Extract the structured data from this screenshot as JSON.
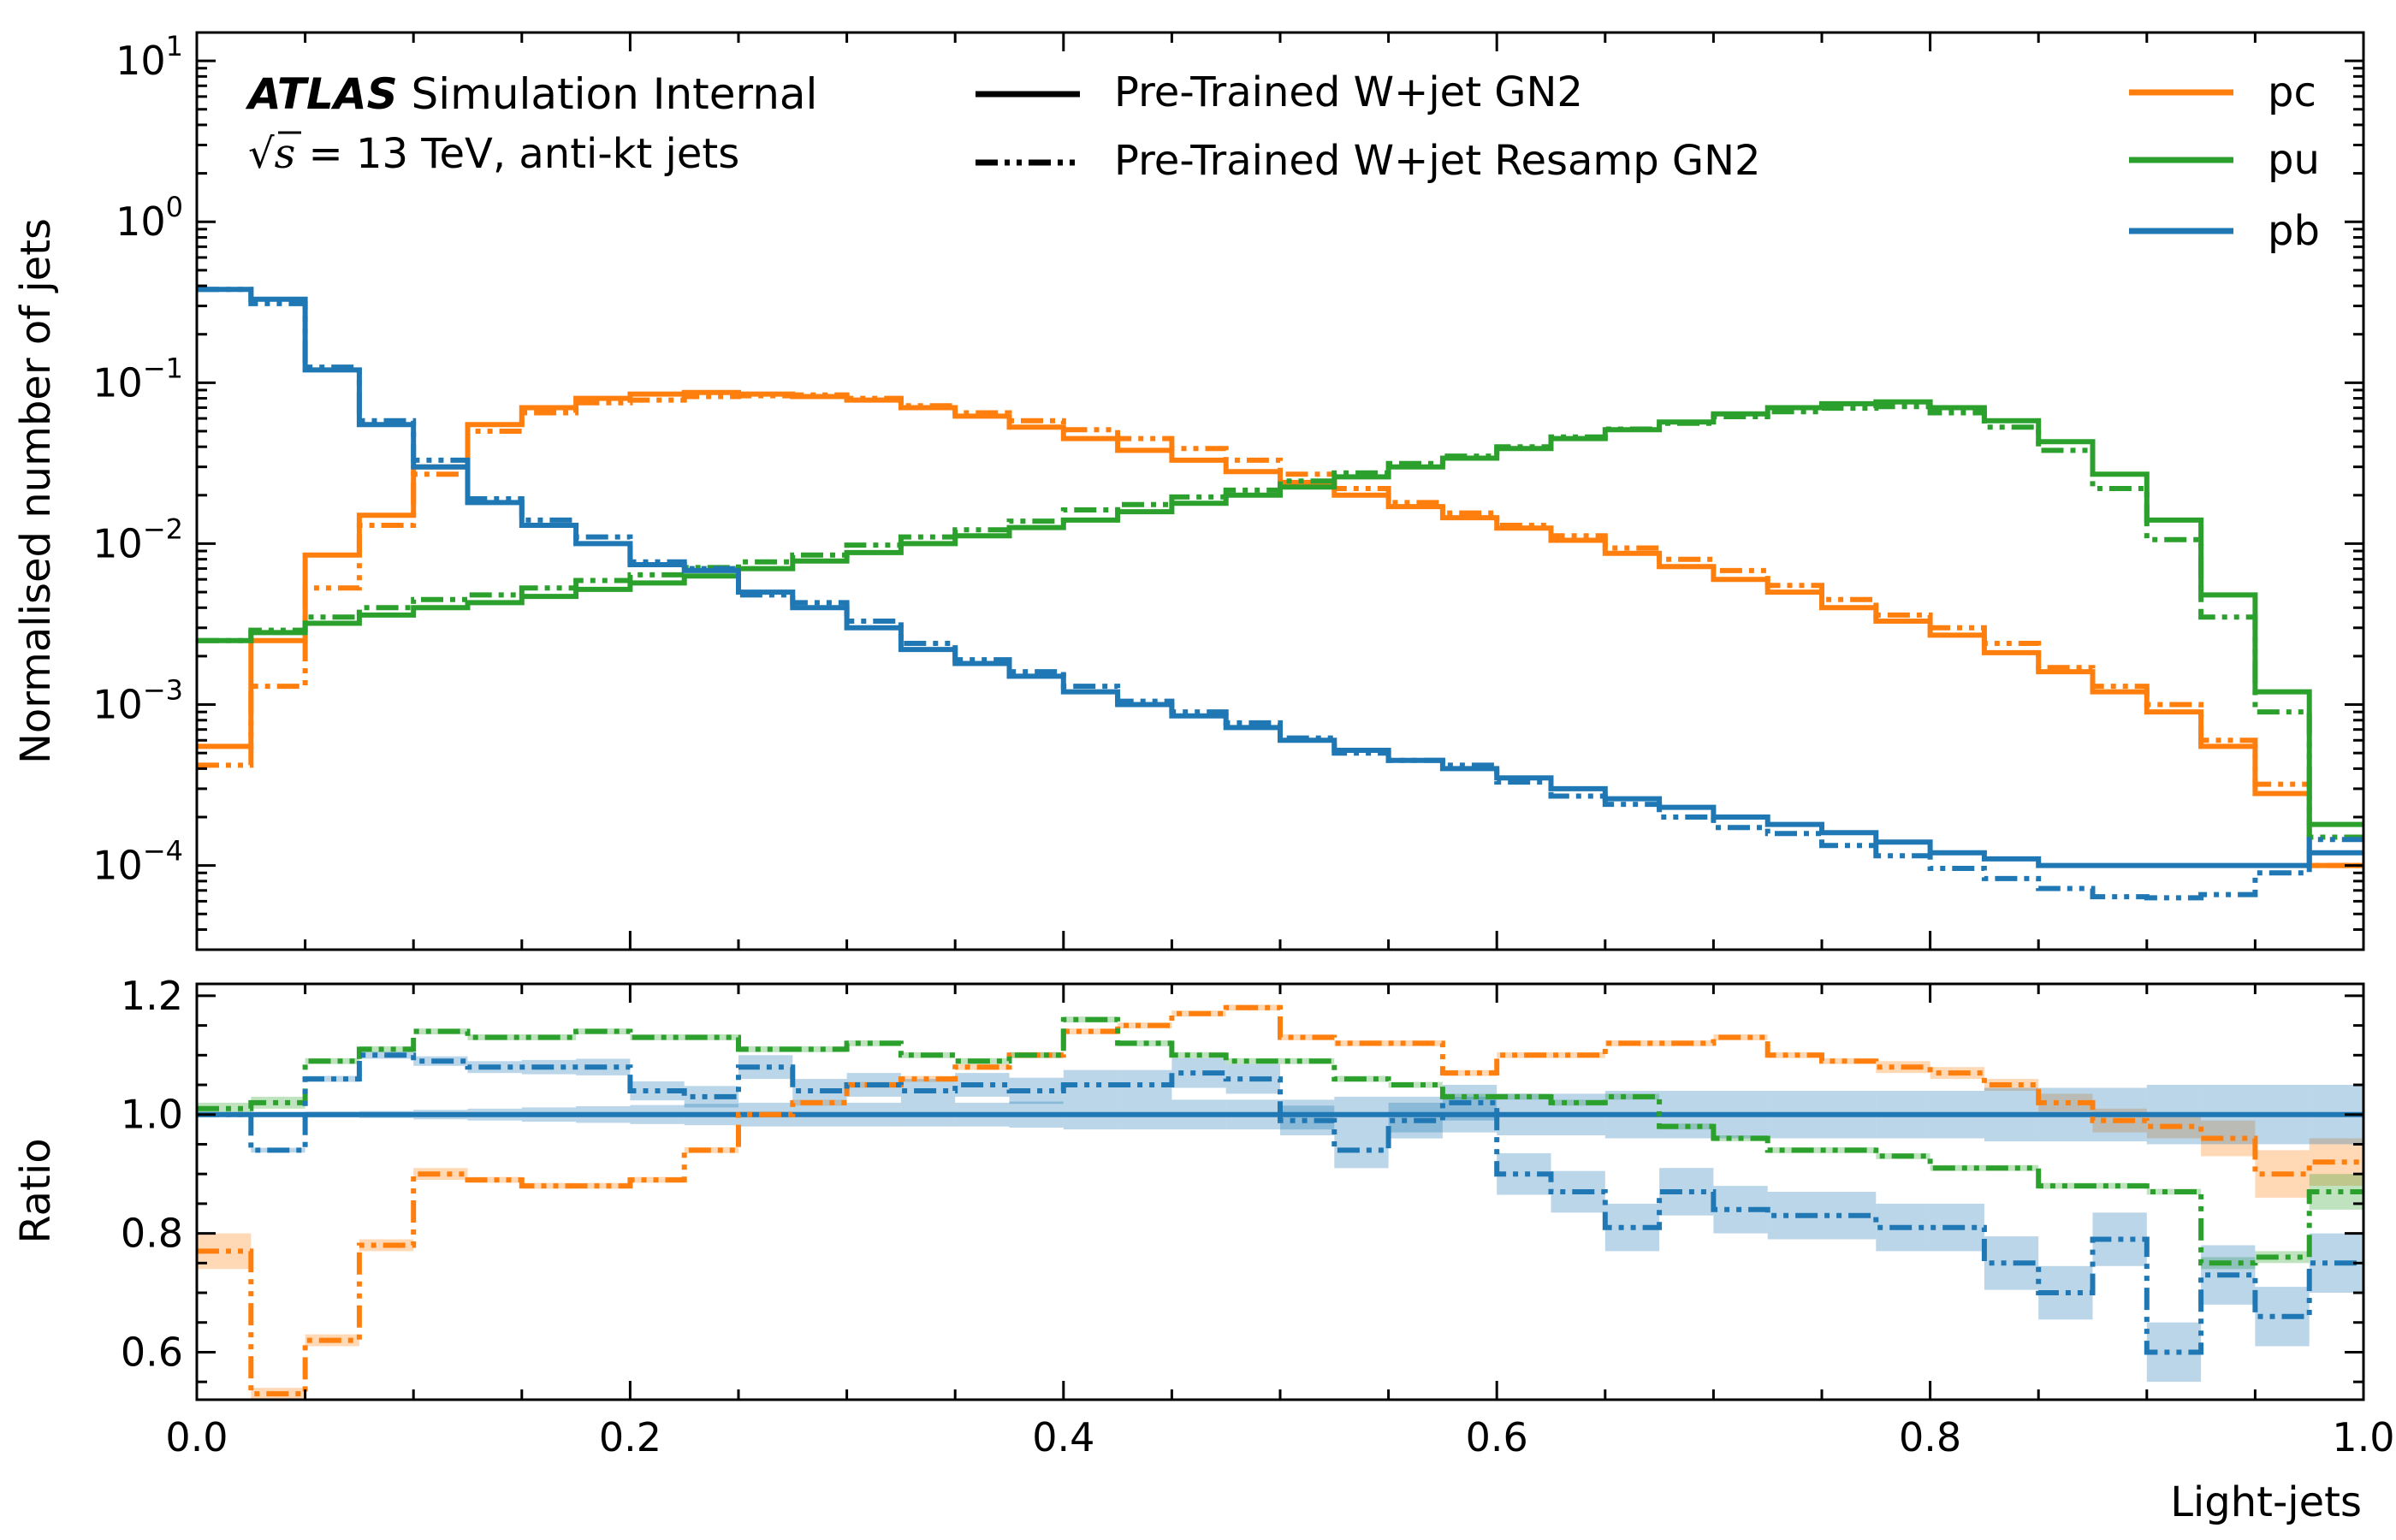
{
  "chart_data": {
    "type": "line",
    "bin_edges": [
      0.0,
      0.025,
      0.05,
      0.075,
      0.1,
      0.125,
      0.15,
      0.175,
      0.2,
      0.225,
      0.25,
      0.275,
      0.3,
      0.325,
      0.35,
      0.375,
      0.4,
      0.425,
      0.45,
      0.475,
      0.5,
      0.525,
      0.55,
      0.575,
      0.6,
      0.625,
      0.65,
      0.675,
      0.7,
      0.725,
      0.75,
      0.775,
      0.8,
      0.825,
      0.85,
      0.875,
      0.9,
      0.925,
      0.95,
      0.975,
      1.0
    ],
    "atlas_label": {
      "bold": "ATLAS",
      "rest": " Simulation Internal",
      "line2_sqrt": "√",
      "line2_s": "s",
      "line2_rest": " = 13 TeV, anti-kt jets"
    },
    "style_legend": [
      {
        "label": "Pre-Trained W+jet GN2",
        "style": "solid"
      },
      {
        "label": "Pre-Trained W+jet Resamp GN2",
        "style": "dashdot"
      }
    ],
    "class_legend": [
      {
        "label": "pc",
        "color": "#ff7f0e"
      },
      {
        "label": "pu",
        "color": "#2ca02c"
      },
      {
        "label": "pb",
        "color": "#1f77b4"
      }
    ],
    "top_panel": {
      "ylabel": "Normalised number of jets",
      "yscale": "log",
      "ylim": [
        3e-05,
        15
      ],
      "yticks": [
        {
          "base": "10",
          "exp": "−4",
          "value": 0.0001
        },
        {
          "base": "10",
          "exp": "−3",
          "value": 0.001
        },
        {
          "base": "10",
          "exp": "−2",
          "value": 0.01
        },
        {
          "base": "10",
          "exp": "−1",
          "value": 0.1
        },
        {
          "base": "10",
          "exp": "0",
          "value": 1
        },
        {
          "base": "10",
          "exp": "1",
          "value": 10
        }
      ],
      "series": [
        {
          "name": "pc",
          "style": "solid",
          "color": "#ff7f0e",
          "values": [
            0.00055,
            0.0025,
            0.0085,
            0.015,
            0.03,
            0.055,
            0.07,
            0.08,
            0.085,
            0.087,
            0.085,
            0.082,
            0.078,
            0.07,
            0.062,
            0.053,
            0.045,
            0.038,
            0.033,
            0.028,
            0.024,
            0.02,
            0.017,
            0.0145,
            0.0125,
            0.0105,
            0.0087,
            0.0072,
            0.006,
            0.005,
            0.004,
            0.0033,
            0.0027,
            0.0021,
            0.0016,
            0.0012,
            0.0009,
            0.00055,
            0.00028,
            0.0001
          ]
        },
        {
          "name": "pc",
          "style": "dashdot",
          "color": "#ff7f0e",
          "values": [
            0.00042,
            0.0013,
            0.0053,
            0.013,
            0.027,
            0.05,
            0.065,
            0.075,
            0.078,
            0.082,
            0.083,
            0.084,
            0.08,
            0.072,
            0.065,
            0.058,
            0.051,
            0.045,
            0.039,
            0.033,
            0.027,
            0.022,
            0.018,
            0.0155,
            0.013,
            0.0112,
            0.0094,
            0.008,
            0.0068,
            0.0055,
            0.0045,
            0.0036,
            0.003,
            0.0024,
            0.0017,
            0.0013,
            0.001,
            0.0006,
            0.00032,
            0.0001
          ]
        },
        {
          "name": "pu",
          "style": "solid",
          "color": "#2ca02c",
          "values": [
            0.0025,
            0.0028,
            0.0032,
            0.0036,
            0.004,
            0.0043,
            0.0047,
            0.0052,
            0.0057,
            0.0063,
            0.007,
            0.0078,
            0.0088,
            0.01,
            0.0112,
            0.0126,
            0.014,
            0.0158,
            0.0178,
            0.02,
            0.0225,
            0.026,
            0.03,
            0.034,
            0.039,
            0.045,
            0.051,
            0.057,
            0.064,
            0.07,
            0.074,
            0.076,
            0.07,
            0.058,
            0.043,
            0.027,
            0.014,
            0.0048,
            0.0012,
            0.00018
          ]
        },
        {
          "name": "pu",
          "style": "dashdot",
          "color": "#2ca02c",
          "values": [
            0.0025,
            0.0029,
            0.0035,
            0.004,
            0.0045,
            0.0048,
            0.0053,
            0.0059,
            0.0064,
            0.0071,
            0.0077,
            0.0085,
            0.0098,
            0.011,
            0.0122,
            0.0138,
            0.0162,
            0.0175,
            0.0195,
            0.0215,
            0.0245,
            0.0275,
            0.0315,
            0.035,
            0.04,
            0.046,
            0.0515,
            0.056,
            0.0615,
            0.066,
            0.0695,
            0.071,
            0.065,
            0.053,
            0.038,
            0.022,
            0.0106,
            0.0035,
            0.0009,
            0.00015
          ]
        },
        {
          "name": "pb",
          "style": "solid",
          "color": "#1f77b4",
          "values": [
            0.38,
            0.33,
            0.12,
            0.055,
            0.03,
            0.018,
            0.013,
            0.01,
            0.0074,
            0.0068,
            0.005,
            0.004,
            0.003,
            0.0022,
            0.0018,
            0.0015,
            0.0012,
            0.001,
            0.00085,
            0.00072,
            0.0006,
            0.00052,
            0.00045,
            0.0004,
            0.00035,
            0.0003,
            0.00026,
            0.00023,
            0.0002,
            0.00018,
            0.00016,
            0.00014,
            0.00012,
            0.00011,
            0.0001,
            0.0001,
            0.0001,
            0.0001,
            0.0001,
            0.00012
          ]
        },
        {
          "name": "pb",
          "style": "dashdot",
          "color": "#1f77b4",
          "values": [
            0.38,
            0.31,
            0.125,
            0.058,
            0.033,
            0.019,
            0.014,
            0.011,
            0.0077,
            0.007,
            0.0048,
            0.0043,
            0.0033,
            0.0024,
            0.0019,
            0.0016,
            0.0013,
            0.00105,
            0.0009,
            0.00077,
            0.00062,
            0.0005,
            0.00045,
            0.00042,
            0.00033,
            0.00027,
            0.00024,
            0.0002,
            0.000172,
            0.000158,
            0.000133,
            0.000115,
            9.6e-05,
            8.3e-05,
            7.2e-05,
            6.4e-05,
            6.3e-05,
            6.6e-05,
            9e-05,
            0.000145
          ]
        }
      ]
    },
    "ratio_panel": {
      "ylabel": "Ratio",
      "ylim": [
        0.52,
        1.22
      ],
      "yticks": [
        "0.6",
        "0.8",
        "1.0",
        "1.2"
      ],
      "reference": 1.0,
      "series": [
        {
          "name": "pc",
          "style": "dashdot",
          "color": "#ff7f0e",
          "values": [
            0.77,
            0.53,
            0.62,
            0.78,
            0.9,
            0.89,
            0.88,
            0.88,
            0.89,
            0.94,
            1.0,
            1.02,
            1.05,
            1.06,
            1.08,
            1.1,
            1.14,
            1.15,
            1.17,
            1.18,
            1.13,
            1.12,
            1.12,
            1.07,
            1.1,
            1.1,
            1.12,
            1.12,
            1.13,
            1.1,
            1.09,
            1.08,
            1.07,
            1.05,
            1.02,
            0.99,
            0.98,
            0.96,
            0.9,
            0.92
          ],
          "band": [
            0.03,
            0.01,
            0.01,
            0.01,
            0.01,
            0.005,
            0.005,
            0.005,
            0.005,
            0.005,
            0.005,
            0.005,
            0.005,
            0.005,
            0.005,
            0.005,
            0.005,
            0.005,
            0.005,
            0.005,
            0.005,
            0.005,
            0.005,
            0.005,
            0.005,
            0.005,
            0.005,
            0.005,
            0.005,
            0.005,
            0.005,
            0.01,
            0.01,
            0.01,
            0.015,
            0.02,
            0.02,
            0.03,
            0.04,
            0.04
          ]
        },
        {
          "name": "pu",
          "style": "dashdot",
          "color": "#2ca02c",
          "values": [
            1.01,
            1.02,
            1.09,
            1.11,
            1.14,
            1.13,
            1.13,
            1.14,
            1.13,
            1.13,
            1.11,
            1.11,
            1.12,
            1.1,
            1.09,
            1.1,
            1.16,
            1.12,
            1.1,
            1.09,
            1.09,
            1.06,
            1.05,
            1.03,
            1.03,
            1.02,
            1.03,
            0.98,
            0.96,
            0.94,
            0.94,
            0.93,
            0.91,
            0.91,
            0.88,
            0.88,
            0.87,
            0.75,
            0.76,
            0.87
          ],
          "band": [
            0.01,
            0.01,
            0.005,
            0.005,
            0.005,
            0.005,
            0.005,
            0.005,
            0.005,
            0.005,
            0.005,
            0.005,
            0.005,
            0.005,
            0.005,
            0.005,
            0.005,
            0.005,
            0.005,
            0.005,
            0.005,
            0.005,
            0.005,
            0.005,
            0.005,
            0.005,
            0.005,
            0.005,
            0.005,
            0.005,
            0.005,
            0.005,
            0.005,
            0.005,
            0.005,
            0.005,
            0.005,
            0.01,
            0.01,
            0.03
          ]
        },
        {
          "name": "pb",
          "style": "dashdot",
          "color": "#1f77b4",
          "values": [
            1.0,
            0.94,
            1.06,
            1.1,
            1.09,
            1.08,
            1.08,
            1.08,
            1.04,
            1.03,
            1.08,
            1.04,
            1.05,
            1.04,
            1.05,
            1.04,
            1.05,
            1.05,
            1.07,
            1.06,
            0.99,
            0.94,
            0.99,
            1.02,
            0.9,
            0.87,
            0.81,
            0.87,
            0.84,
            0.83,
            0.83,
            0.81,
            0.81,
            0.75,
            0.7,
            0.79,
            0.6,
            0.73,
            0.66,
            0.75
          ],
          "band": [
            0.002,
            0.004,
            0.005,
            0.006,
            0.008,
            0.01,
            0.012,
            0.014,
            0.016,
            0.018,
            0.02,
            0.02,
            0.02,
            0.02,
            0.02,
            0.022,
            0.025,
            0.025,
            0.025,
            0.025,
            0.025,
            0.03,
            0.03,
            0.03,
            0.035,
            0.035,
            0.04,
            0.04,
            0.04,
            0.04,
            0.04,
            0.04,
            0.04,
            0.045,
            0.045,
            0.045,
            0.05,
            0.05,
            0.05,
            0.05
          ]
        }
      ]
    },
    "xlabel": "Light-jets",
    "xlim": [
      0.0,
      1.0
    ],
    "xticks": [
      "0.0",
      "0.2",
      "0.4",
      "0.6",
      "0.8",
      "1.0"
    ]
  }
}
